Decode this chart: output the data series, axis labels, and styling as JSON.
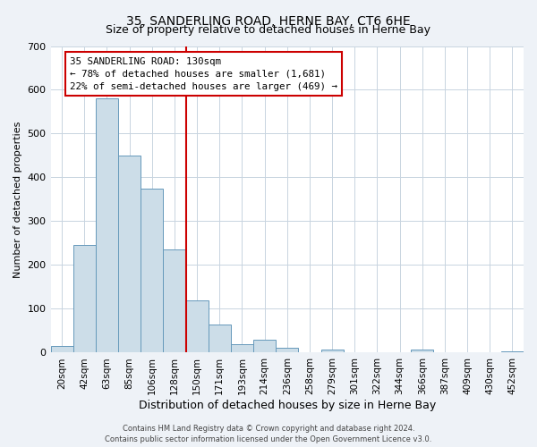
{
  "title": "35, SANDERLING ROAD, HERNE BAY, CT6 6HE",
  "subtitle": "Size of property relative to detached houses in Herne Bay",
  "xlabel": "Distribution of detached houses by size in Herne Bay",
  "ylabel": "Number of detached properties",
  "bar_labels": [
    "20sqm",
    "42sqm",
    "63sqm",
    "85sqm",
    "106sqm",
    "128sqm",
    "150sqm",
    "171sqm",
    "193sqm",
    "214sqm",
    "236sqm",
    "258sqm",
    "279sqm",
    "301sqm",
    "322sqm",
    "344sqm",
    "366sqm",
    "387sqm",
    "409sqm",
    "430sqm",
    "452sqm"
  ],
  "bar_values": [
    15,
    245,
    580,
    450,
    375,
    235,
    120,
    65,
    20,
    30,
    12,
    1,
    8,
    0,
    0,
    0,
    8,
    0,
    0,
    0,
    3
  ],
  "bar_color": "#ccdde8",
  "bar_edge_color": "#6699bb",
  "vline_color": "#cc0000",
  "annotation_title": "35 SANDERLING ROAD: 130sqm",
  "annotation_line1": "← 78% of detached houses are smaller (1,681)",
  "annotation_line2": "22% of semi-detached houses are larger (469) →",
  "annotation_box_color": "#cc0000",
  "ylim": [
    0,
    700
  ],
  "yticks": [
    0,
    100,
    200,
    300,
    400,
    500,
    600,
    700
  ],
  "footer_line1": "Contains HM Land Registry data © Crown copyright and database right 2024.",
  "footer_line2": "Contains public sector information licensed under the Open Government Licence v3.0.",
  "bg_color": "#eef2f7",
  "plot_bg_color": "#ffffff",
  "grid_color": "#c8d4e0"
}
